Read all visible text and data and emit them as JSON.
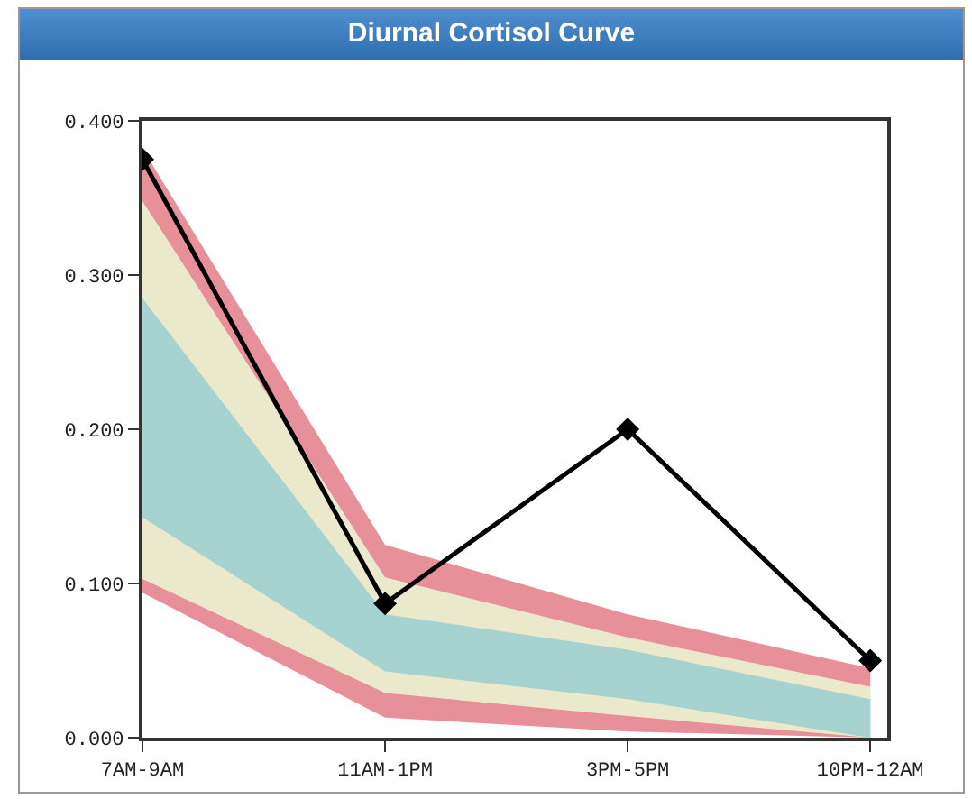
{
  "chart_data": {
    "type": "line",
    "title": "Diurnal Cortisol Curve",
    "categories": [
      "7AM-9AM",
      "11AM-1PM",
      "3PM-5PM",
      "10PM-12AM"
    ],
    "series": [
      {
        "type": "area",
        "color": "#e8909a",
        "values": [
          null,
          null,
          null,
          null
        ],
        "upper": [
          0.382,
          0.125,
          0.08,
          0.045
        ],
        "lower": [
          0.094,
          0.013,
          0.004,
          0.0
        ]
      },
      {
        "type": "area",
        "color": "#eae9cc",
        "values": [
          null,
          null,
          null,
          null
        ],
        "upper": [
          0.348,
          0.104,
          0.065,
          0.033
        ],
        "lower": [
          0.103,
          0.029,
          0.014,
          0.0
        ]
      },
      {
        "type": "area",
        "color": "#a6d2d0",
        "values": [
          null,
          null,
          null,
          null
        ],
        "upper": [
          0.285,
          0.08,
          0.057,
          0.025
        ],
        "lower": [
          0.143,
          0.043,
          0.025,
          0.0
        ]
      },
      {
        "type": "line",
        "color": "#000000",
        "values": [
          0.375,
          0.087,
          0.2,
          0.05
        ],
        "marker": "diamond"
      }
    ],
    "ylim": [
      0,
      0.4
    ],
    "yticks": [
      {
        "value": 0,
        "label": "0.000"
      },
      {
        "value": 0.1,
        "label": "0.100"
      },
      {
        "value": 0.2,
        "label": "0.200"
      },
      {
        "value": 0.3,
        "label": "0.300"
      },
      {
        "value": 0.4,
        "label": "0.400"
      }
    ],
    "line_style": "solid",
    "grid": false
  }
}
